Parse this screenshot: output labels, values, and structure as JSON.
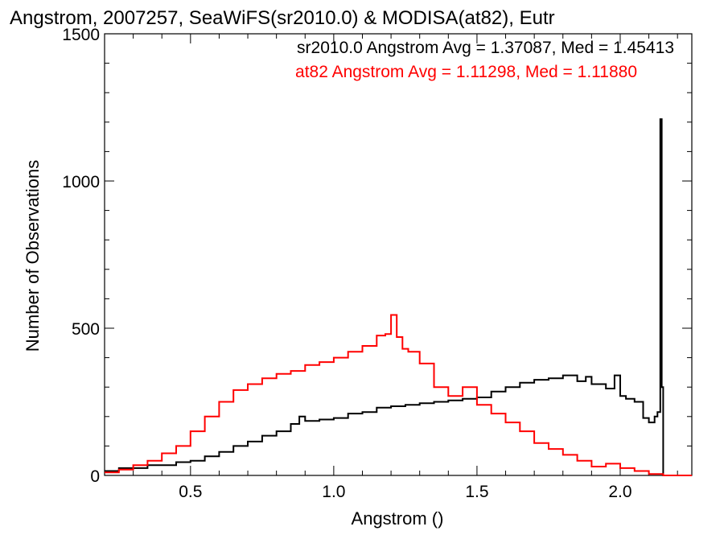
{
  "chart_data": {
    "type": "histogram",
    "title": "Angstrom, 2007257, SeaWiFS(sr2010.0) & MODISA(at82), Eutr",
    "xlabel": "Angstrom ()",
    "ylabel": "Number of Observations",
    "xlim": [
      0.2,
      2.25
    ],
    "ylim": [
      0,
      1500
    ],
    "xticks": [
      0.5,
      1.0,
      1.5,
      2.0
    ],
    "xtick_labels": [
      "0.5",
      "1.0",
      "1.5",
      "2.0"
    ],
    "yticks": [
      0,
      500,
      1000,
      1500
    ],
    "ytick_labels": [
      "0",
      "500",
      "1000",
      "1500"
    ],
    "grid": false,
    "legend_placement": "top-right",
    "annotations": [
      {
        "text": "sr2010.0 Angstrom Avg = 1.37087, Med = 1.45413",
        "color": "#000000"
      },
      {
        "text": "at82 Angstrom Avg = 1.11298, Med = 1.11880",
        "color": "#ff0000"
      }
    ],
    "series": [
      {
        "color": "#000000",
        "x": [
          0.2,
          0.25,
          0.3,
          0.35,
          0.4,
          0.45,
          0.5,
          0.55,
          0.6,
          0.65,
          0.7,
          0.75,
          0.8,
          0.85,
          0.88,
          0.9,
          0.95,
          1.0,
          1.05,
          1.1,
          1.15,
          1.2,
          1.25,
          1.3,
          1.35,
          1.4,
          1.45,
          1.5,
          1.55,
          1.6,
          1.65,
          1.7,
          1.75,
          1.8,
          1.85,
          1.88,
          1.9,
          1.95,
          1.98,
          2.0,
          2.02,
          2.05,
          2.08,
          2.1,
          2.12,
          2.13,
          2.14,
          2.145,
          2.15,
          2.16,
          2.25
        ],
        "y": [
          15,
          25,
          25,
          35,
          35,
          45,
          50,
          65,
          80,
          100,
          115,
          135,
          150,
          175,
          200,
          185,
          190,
          195,
          210,
          215,
          230,
          235,
          240,
          245,
          250,
          255,
          260,
          265,
          285,
          300,
          315,
          325,
          330,
          340,
          320,
          335,
          310,
          295,
          340,
          270,
          260,
          250,
          195,
          180,
          200,
          215,
          1210,
          300,
          0,
          0,
          0
        ]
      },
      {
        "color": "#ff0000",
        "x": [
          0.2,
          0.25,
          0.3,
          0.35,
          0.4,
          0.45,
          0.5,
          0.55,
          0.6,
          0.65,
          0.7,
          0.75,
          0.8,
          0.85,
          0.9,
          0.95,
          1.0,
          1.05,
          1.1,
          1.15,
          1.18,
          1.2,
          1.22,
          1.24,
          1.26,
          1.3,
          1.35,
          1.4,
          1.45,
          1.5,
          1.55,
          1.6,
          1.65,
          1.7,
          1.75,
          1.8,
          1.85,
          1.9,
          1.95,
          2.0,
          2.05,
          2.1,
          2.15,
          2.25
        ],
        "y": [
          10,
          20,
          35,
          50,
          75,
          100,
          150,
          200,
          250,
          290,
          310,
          330,
          345,
          355,
          375,
          385,
          400,
          420,
          440,
          475,
          480,
          545,
          470,
          430,
          420,
          380,
          300,
          270,
          300,
          240,
          210,
          180,
          150,
          110,
          90,
          70,
          50,
          30,
          40,
          25,
          15,
          5,
          0,
          0
        ]
      }
    ]
  }
}
